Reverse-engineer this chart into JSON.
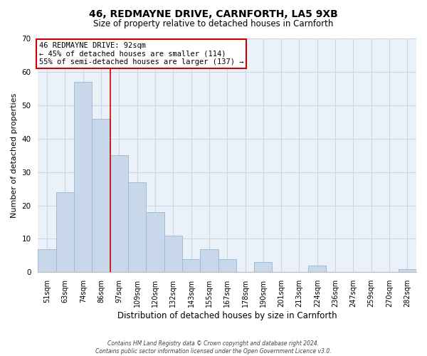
{
  "title": "46, REDMAYNE DRIVE, CARNFORTH, LA5 9XB",
  "subtitle": "Size of property relative to detached houses in Carnforth",
  "xlabel": "Distribution of detached houses by size in Carnforth",
  "ylabel": "Number of detached properties",
  "bar_labels": [
    "51sqm",
    "63sqm",
    "74sqm",
    "86sqm",
    "97sqm",
    "109sqm",
    "120sqm",
    "132sqm",
    "143sqm",
    "155sqm",
    "167sqm",
    "178sqm",
    "190sqm",
    "201sqm",
    "213sqm",
    "224sqm",
    "236sqm",
    "247sqm",
    "259sqm",
    "270sqm",
    "282sqm"
  ],
  "bar_values": [
    7,
    24,
    57,
    46,
    35,
    27,
    18,
    11,
    4,
    7,
    4,
    0,
    3,
    0,
    0,
    2,
    0,
    0,
    0,
    0,
    1
  ],
  "bar_color": "#c8d8ea",
  "bar_edge_color": "#a0bcd4",
  "plot_bg_color": "#eaf1f8",
  "ylim": [
    0,
    70
  ],
  "yticks": [
    0,
    10,
    20,
    30,
    40,
    50,
    60,
    70
  ],
  "annotation_text_line1": "46 REDMAYNE DRIVE: 92sqm",
  "annotation_text_line2": "← 45% of detached houses are smaller (114)",
  "annotation_text_line3": "55% of semi-detached houses are larger (137) →",
  "annotation_box_color": "#ffffff",
  "annotation_box_edge_color": "#cc0000",
  "vline_x": 3.5,
  "vline_color": "#cc0000",
  "footer_line1": "Contains HM Land Registry data © Crown copyright and database right 2024.",
  "footer_line2": "Contains public sector information licensed under the Open Government Licence v3.0.",
  "background_color": "#ffffff",
  "grid_color": "#c8d8e8",
  "title_fontsize": 10,
  "subtitle_fontsize": 8.5,
  "axis_label_fontsize": 8,
  "tick_fontsize": 7,
  "annotation_fontsize": 7.5,
  "footer_fontsize": 5.5
}
